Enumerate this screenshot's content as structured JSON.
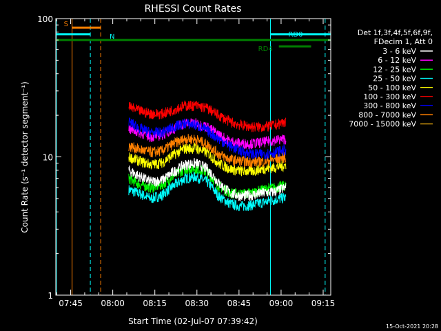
{
  "chart_data": {
    "type": "line",
    "title": "RHESSI Count Rates",
    "xlabel": "Start Time (02-Jul-07 07:39:42)",
    "ylabel": "Count Rate (s⁻¹ detector segment⁻¹)",
    "yscale": "log",
    "ylim": [
      1,
      100
    ],
    "xlim_minutes": [
      0,
      98
    ],
    "x_ticks": [
      {
        "label": "07:45",
        "minute": 5.3
      },
      {
        "label": "08:00",
        "minute": 20.3
      },
      {
        "label": "08:15",
        "minute": 35.3
      },
      {
        "label": "08:30",
        "minute": 50.3
      },
      {
        "label": "08:45",
        "minute": 65.3
      },
      {
        "label": "09:00",
        "minute": 80.3
      },
      {
        "label": "09:15",
        "minute": 95.3
      }
    ],
    "y_ticks": [
      {
        "label": "100",
        "value": 100
      },
      {
        "label": "10",
        "value": 10
      },
      {
        "label": "1",
        "value": 1
      }
    ],
    "legend_header": [
      "Det 1f,3f,4f,5f,6f,9f,",
      "FDecim 1, Att 0"
    ],
    "legend_position": "right",
    "data_start_minute": 26,
    "data_end_minute": 82,
    "series": [
      {
        "name": "3 - 6 keV",
        "color": "#ffffff",
        "values": [
          [
            26,
            8.0
          ],
          [
            30,
            7.2
          ],
          [
            34,
            6.6
          ],
          [
            38,
            6.8
          ],
          [
            42,
            7.8
          ],
          [
            46,
            8.8
          ],
          [
            50,
            9.0
          ],
          [
            54,
            8.2
          ],
          [
            58,
            6.5
          ],
          [
            62,
            5.5
          ],
          [
            66,
            5.2
          ],
          [
            70,
            5.3
          ],
          [
            74,
            5.5
          ],
          [
            78,
            5.6
          ],
          [
            82,
            6.0
          ]
        ]
      },
      {
        "name": "6 - 12 keV",
        "color": "#ff00ff",
        "values": [
          [
            26,
            16.0
          ],
          [
            30,
            15.0
          ],
          [
            34,
            14.0
          ],
          [
            38,
            14.5
          ],
          [
            42,
            16.0
          ],
          [
            46,
            17.5
          ],
          [
            50,
            17.5
          ],
          [
            54,
            16.5
          ],
          [
            58,
            14.5
          ],
          [
            62,
            13.0
          ],
          [
            66,
            12.5
          ],
          [
            70,
            12.5
          ],
          [
            74,
            12.8
          ],
          [
            78,
            13.2
          ],
          [
            82,
            13.5
          ]
        ]
      },
      {
        "name": "12 - 25 keV",
        "color": "#00ff00",
        "values": [
          [
            26,
            7.0
          ],
          [
            30,
            6.3
          ],
          [
            34,
            6.0
          ],
          [
            38,
            6.3
          ],
          [
            42,
            7.3
          ],
          [
            46,
            8.2
          ],
          [
            50,
            8.3
          ],
          [
            54,
            7.7
          ],
          [
            58,
            6.2
          ],
          [
            62,
            5.5
          ],
          [
            66,
            5.4
          ],
          [
            70,
            5.5
          ],
          [
            74,
            5.8
          ],
          [
            78,
            6.0
          ],
          [
            82,
            6.2
          ]
        ]
      },
      {
        "name": "25 - 50 keV",
        "color": "#00ffff",
        "values": [
          [
            26,
            5.8
          ],
          [
            30,
            5.4
          ],
          [
            34,
            5.0
          ],
          [
            38,
            5.3
          ],
          [
            42,
            6.2
          ],
          [
            46,
            7.0
          ],
          [
            50,
            7.2
          ],
          [
            54,
            6.6
          ],
          [
            58,
            5.2
          ],
          [
            62,
            4.6
          ],
          [
            66,
            4.4
          ],
          [
            70,
            4.5
          ],
          [
            74,
            4.7
          ],
          [
            78,
            4.9
          ],
          [
            82,
            5.1
          ]
        ]
      },
      {
        "name": "50 - 100 keV",
        "color": "#ffff00",
        "values": [
          [
            26,
            10.0
          ],
          [
            30,
            9.3
          ],
          [
            34,
            8.8
          ],
          [
            38,
            9.1
          ],
          [
            42,
            10.4
          ],
          [
            46,
            11.5
          ],
          [
            50,
            11.6
          ],
          [
            54,
            10.7
          ],
          [
            58,
            9.0
          ],
          [
            62,
            8.2
          ],
          [
            66,
            7.9
          ],
          [
            70,
            7.9
          ],
          [
            74,
            8.2
          ],
          [
            78,
            8.4
          ],
          [
            82,
            8.7
          ]
        ]
      },
      {
        "name": "100 - 300 keV",
        "color": "#ff0000",
        "values": [
          [
            26,
            23.0
          ],
          [
            30,
            21.5
          ],
          [
            34,
            20.5
          ],
          [
            38,
            20.5
          ],
          [
            42,
            22.0
          ],
          [
            46,
            23.5
          ],
          [
            50,
            23.5
          ],
          [
            54,
            22.5
          ],
          [
            58,
            20.0
          ],
          [
            62,
            18.0
          ],
          [
            66,
            17.0
          ],
          [
            70,
            16.5
          ],
          [
            74,
            16.5
          ],
          [
            78,
            17.0
          ],
          [
            82,
            18.0
          ]
        ]
      },
      {
        "name": "300 - 800 keV",
        "color": "#0000ff",
        "values": [
          [
            26,
            18.0
          ],
          [
            30,
            16.0
          ],
          [
            34,
            15.0
          ],
          [
            38,
            15.0
          ],
          [
            42,
            16.5
          ],
          [
            46,
            17.5
          ],
          [
            50,
            17.0
          ],
          [
            54,
            15.5
          ],
          [
            58,
            13.5
          ],
          [
            62,
            12.0
          ],
          [
            66,
            11.0
          ],
          [
            70,
            10.5
          ],
          [
            74,
            10.5
          ],
          [
            78,
            10.8
          ],
          [
            82,
            11.3
          ]
        ]
      },
      {
        "name": "800 - 7000 keV",
        "color": "#ff8000",
        "values": [
          [
            26,
            12.0
          ],
          [
            30,
            11.3
          ],
          [
            34,
            10.8
          ],
          [
            38,
            11.1
          ],
          [
            42,
            12.5
          ],
          [
            46,
            13.5
          ],
          [
            50,
            13.4
          ],
          [
            54,
            12.3
          ],
          [
            58,
            10.5
          ],
          [
            62,
            9.6
          ],
          [
            66,
            9.3
          ],
          [
            70,
            9.2
          ],
          [
            74,
            9.3
          ],
          [
            78,
            9.6
          ],
          [
            82,
            10.0
          ]
        ]
      },
      {
        "name": "7000 - 15000 keV",
        "color": "#b8860b",
        "values": []
      }
    ],
    "annotations": {
      "S": {
        "label": "S",
        "color": "#ff8000",
        "start_minute": 5.8,
        "end_minute": 16.0,
        "value": 86
      },
      "N": {
        "label": "N",
        "color": "#00ffff",
        "start_minute": 0,
        "end_minute": 12.3,
        "value": 77
      },
      "RD0": {
        "label": "RD0",
        "color": "#00ffff",
        "start_minute": 76.5,
        "end_minute": 98,
        "value": 77
      },
      "RD4": {
        "label": "RD4",
        "color": "#008000",
        "start_minute": 79.5,
        "end_minute": 91.0,
        "value": 63
      },
      "green_bar": {
        "color": "#008000",
        "start_minute": 0,
        "end_minute": 98,
        "value": 70
      },
      "vlines": [
        {
          "minute": 0.2,
          "color": "#00ffff",
          "style": "solid"
        },
        {
          "minute": 5.8,
          "color": "#ff8000",
          "style": "solid"
        },
        {
          "minute": 12.3,
          "color": "#00ffff",
          "style": "dashed"
        },
        {
          "minute": 16.0,
          "color": "#ff8000",
          "style": "dashed"
        },
        {
          "minute": 76.5,
          "color": "#00ffff",
          "style": "solid"
        },
        {
          "minute": 96.0,
          "color": "#00ffff",
          "style": "dashed"
        }
      ]
    },
    "footer_timestamp": "15-Oct-2021 20:28"
  }
}
